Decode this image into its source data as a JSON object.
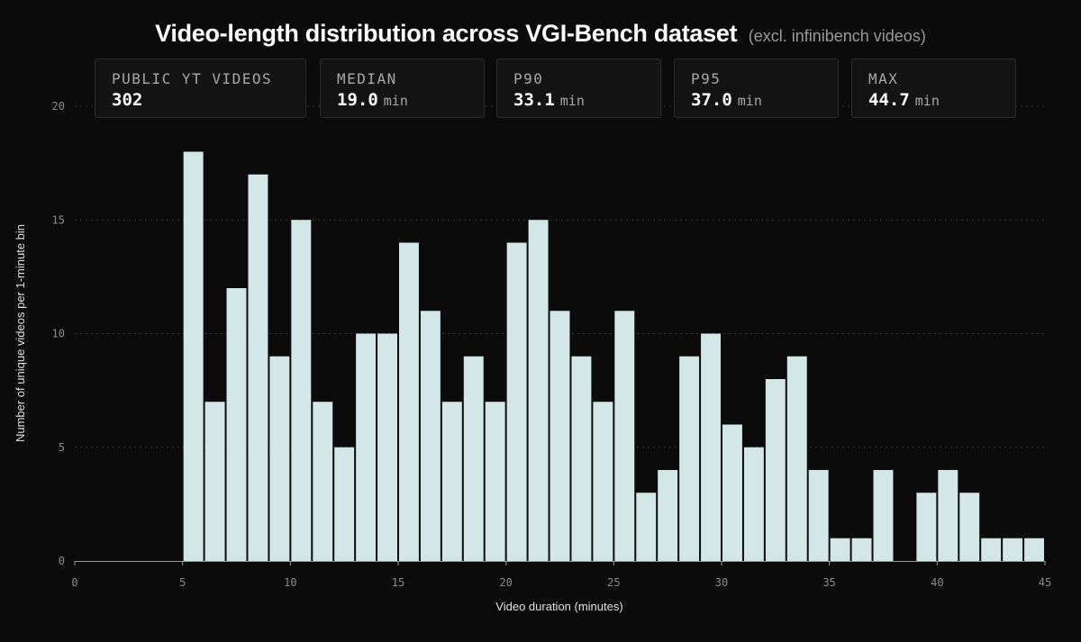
{
  "header": {
    "title": "Video-length distribution across VGI-Bench dataset",
    "subtitle": "(excl. infinibench videos)"
  },
  "stats": [
    {
      "label": "PUBLIC YT VIDEOS",
      "value": "302",
      "unit": ""
    },
    {
      "label": "MEDIAN",
      "value": "19.0",
      "unit": "min"
    },
    {
      "label": "P90",
      "value": "33.1",
      "unit": "min"
    },
    {
      "label": "P95",
      "value": "37.0",
      "unit": "min"
    },
    {
      "label": "MAX",
      "value": "44.7",
      "unit": "min"
    }
  ],
  "colors": {
    "background": "#0b0b0b",
    "bar_fill": "#d3e6e8",
    "grid": "#3a3a3a",
    "axis": "#9a9a9a"
  },
  "chart_data": {
    "type": "bar",
    "title": "Video-length distribution across VGI-Bench dataset",
    "subtitle": "(excl. infinibench videos)",
    "xlabel": "Video duration (minutes)",
    "ylabel": "Number of unique videos per 1-minute bin",
    "xlim": [
      0,
      45
    ],
    "ylim": [
      0,
      20
    ],
    "xticks": [
      0,
      5,
      10,
      15,
      20,
      25,
      30,
      35,
      40,
      45
    ],
    "yticks": [
      0,
      5,
      10,
      15,
      20
    ],
    "bin_width": 1,
    "bin_starts": [
      5,
      6,
      7,
      8,
      9,
      10,
      11,
      12,
      13,
      14,
      15,
      16,
      17,
      18,
      19,
      20,
      21,
      22,
      23,
      24,
      25,
      26,
      27,
      28,
      29,
      30,
      31,
      32,
      33,
      34,
      35,
      36,
      37,
      38,
      39,
      40,
      41,
      42,
      43,
      44
    ],
    "values": [
      18,
      7,
      12,
      17,
      9,
      15,
      7,
      5,
      10,
      10,
      14,
      11,
      7,
      9,
      7,
      14,
      15,
      11,
      9,
      7,
      11,
      3,
      4,
      9,
      10,
      6,
      5,
      8,
      9,
      4,
      1,
      1,
      4,
      0,
      3,
      4,
      3,
      1,
      1,
      1
    ],
    "grid": "horizontal dotted",
    "legend": "none"
  }
}
